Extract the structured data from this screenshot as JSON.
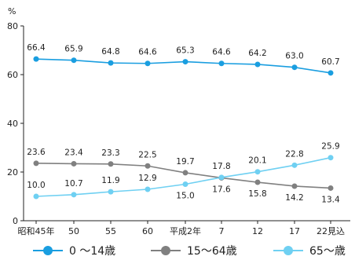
{
  "chart_data": {
    "type": "line",
    "unit_label": "%",
    "categories": [
      "昭和45年",
      "50",
      "55",
      "60",
      "平成2年",
      "7",
      "12",
      "17",
      "22見込"
    ],
    "ylim": [
      0,
      80
    ],
    "yticks": [
      0,
      20,
      40,
      60,
      80
    ],
    "grid": false,
    "legend_position": "bottom",
    "series": [
      {
        "name": "0 〜14歳",
        "color": "#1a9ee0",
        "values": [
          66.4,
          65.9,
          64.8,
          64.6,
          65.3,
          64.6,
          64.2,
          63.0,
          60.7
        ],
        "labels": [
          "66.4",
          "65.9",
          "64.8",
          "64.6",
          "65.3",
          "64.6",
          "64.2",
          "63.0",
          "60.7"
        ]
      },
      {
        "name": "15〜64歳",
        "color": "#808080",
        "values": [
          23.6,
          23.4,
          23.3,
          22.5,
          19.7,
          17.6,
          15.8,
          14.2,
          13.4
        ],
        "labels": [
          "23.6",
          "23.4",
          "23.3",
          "22.5",
          "19.7",
          "17.6",
          "15.8",
          "14.2",
          "13.4"
        ]
      },
      {
        "name": "65〜歳",
        "color": "#6fd0f2",
        "values": [
          10.0,
          10.7,
          11.9,
          12.9,
          15.0,
          17.8,
          20.1,
          22.8,
          25.9
        ],
        "labels": [
          "10.0",
          "10.7",
          "11.9",
          "12.9",
          "15.0",
          "17.8",
          "20.1",
          "22.8",
          "25.9"
        ]
      }
    ]
  }
}
